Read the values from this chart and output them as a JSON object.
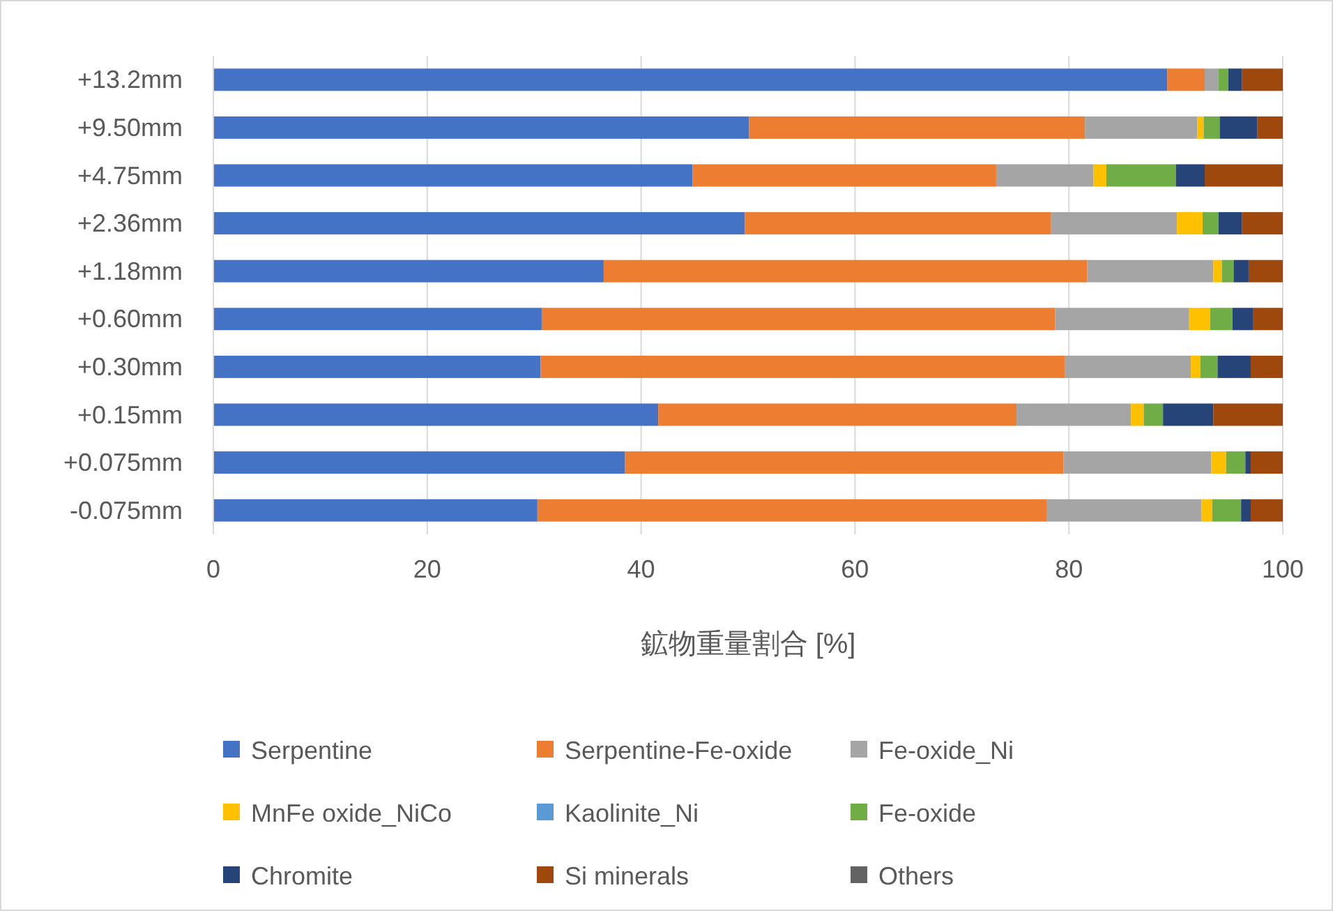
{
  "chart_data": {
    "type": "bar",
    "orientation": "horizontal",
    "stacked": true,
    "xlabel": "鉱物重量割合 [%]",
    "categories": [
      "+13.2mm",
      "+9.50mm",
      "+4.75mm",
      "+2.36mm",
      "+1.18mm",
      "+0.60mm",
      "+0.30mm",
      "+0.15mm",
      "+0.075mm",
      "-0.075mm"
    ],
    "xlim": [
      0,
      100
    ],
    "xticks": [
      0,
      20,
      40,
      60,
      80,
      100
    ],
    "grid": "x",
    "legend": "bottom",
    "series": [
      {
        "name": "Serpentine",
        "color": "#4472c4",
        "values": [
          89.2,
          50.1,
          44.8,
          49.7,
          36.5,
          30.7,
          30.6,
          41.6,
          38.5,
          30.3
        ]
      },
      {
        "name": "Serpentine-Fe-oxide",
        "color": "#ed7d31",
        "values": [
          3.5,
          31.4,
          28.4,
          28.6,
          45.2,
          48.0,
          49.0,
          33.5,
          41.0,
          47.6
        ]
      },
      {
        "name": "Fe-oxide_Ni",
        "color": "#a5a5a5",
        "values": [
          1.3,
          10.5,
          9.1,
          11.8,
          11.8,
          12.5,
          11.8,
          10.7,
          13.8,
          14.5
        ]
      },
      {
        "name": "MnFe oxide_NiCo",
        "color": "#ffc000",
        "values": [
          0,
          0.6,
          1.2,
          2.4,
          0.8,
          2.0,
          0.9,
          1.2,
          1.4,
          1.0
        ]
      },
      {
        "name": "Kaolinite_Ni",
        "color": "#5b9bd5",
        "values": [
          0,
          0,
          0,
          0,
          0,
          0,
          0,
          0,
          0,
          0
        ]
      },
      {
        "name": "Fe-oxide",
        "color": "#70ad47",
        "values": [
          0.9,
          1.5,
          6.5,
          1.5,
          1.1,
          2.1,
          1.6,
          1.8,
          1.8,
          2.7
        ]
      },
      {
        "name": "Chromite",
        "color": "#264478",
        "values": [
          1.3,
          3.5,
          2.7,
          2.2,
          1.4,
          1.9,
          3.1,
          4.7,
          0.5,
          0.9
        ]
      },
      {
        "name": "Si minerals",
        "color": "#9e480e",
        "values": [
          3.8,
          2.4,
          7.3,
          3.8,
          3.2,
          2.8,
          3.0,
          6.5,
          3.0,
          3.0
        ]
      },
      {
        "name": "Others",
        "color": "#636363",
        "values": [
          0,
          0,
          0,
          0,
          0,
          0,
          0,
          0,
          0,
          0
        ]
      }
    ]
  }
}
